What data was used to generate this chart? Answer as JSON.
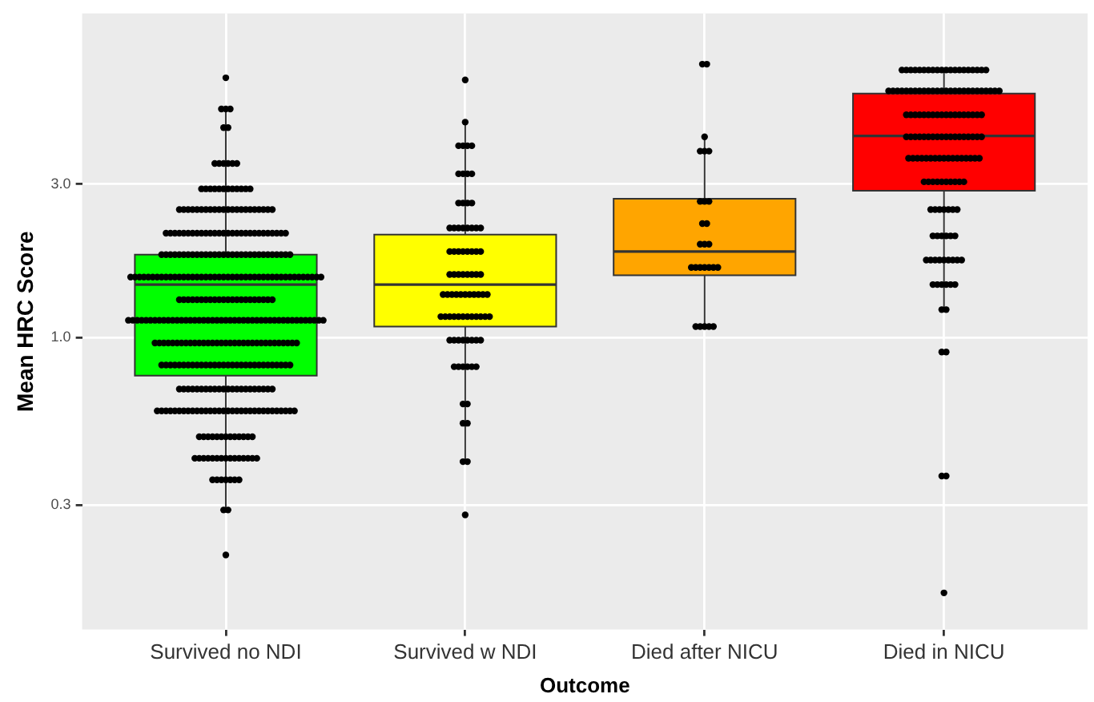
{
  "chart_data": {
    "type": "box",
    "xlabel": "Outcome",
    "ylabel": "Mean HRC Score",
    "categories": [
      "Survived no NDI",
      "Survived w NDI",
      "Died after NICU",
      "Died in NICU"
    ],
    "colors": [
      "#00ff00",
      "#ffff00",
      "#ffa500",
      "#ff0000"
    ],
    "boxes": [
      {
        "low": 0.29,
        "q1": 0.76,
        "median": 1.46,
        "q3": 1.81,
        "high": 5.14
      },
      {
        "low": 0.41,
        "q1": 1.08,
        "median": 1.46,
        "q3": 2.09,
        "high": 4.68
      },
      {
        "low": 1.08,
        "q1": 1.56,
        "median": 1.85,
        "q3": 2.7,
        "high": 4.21
      },
      {
        "low": 1.22,
        "q1": 2.86,
        "median": 4.24,
        "q3": 5.74,
        "high": 6.8
      }
    ],
    "series": [
      {
        "type": "scatter",
        "color": "#000000",
        "x": [
          "Survived no NDI",
          "Survived no NDI",
          "Survived no NDI",
          "Survived no NDI",
          "Survived no NDI",
          "Survived no NDI",
          "Survived no NDI",
          "Survived no NDI",
          "Survived no NDI",
          "Survived no NDI",
          "Survived no NDI",
          "Survived no NDI",
          "Survived no NDI",
          "Survived no NDI",
          "Survived no NDI",
          "Survived no NDI",
          "Survived no NDI",
          "Survived no NDI",
          "Survived no NDI",
          "Survived no NDI",
          "Survived no NDI",
          "Survived no NDI",
          "Survived no NDI",
          "Survived no NDI",
          "Survived no NDI",
          "Survived no NDI",
          "Survived no NDI",
          "Survived no NDI",
          "Survived no NDI",
          "Survived no NDI",
          "Survived no NDI",
          "Survived no NDI",
          "Survived no NDI",
          "Survived no NDI",
          "Survived no NDI",
          "Survived no NDI",
          "Survived no NDI",
          "Survived no NDI",
          "Survived no NDI",
          "Survived no NDI",
          "Survived no NDI",
          "Survived no NDI",
          "Survived no NDI",
          "Survived no NDI",
          "Survived no NDI",
          "Survived no NDI",
          "Survived no NDI",
          "Survived no NDI",
          "Survived no NDI",
          "Survived no NDI",
          "Survived no NDI",
          "Survived no NDI",
          "Survived no NDI",
          "Survived no NDI",
          "Survived no NDI",
          "Survived no NDI",
          "Survived no NDI",
          "Survived no NDI",
          "Survived no NDI",
          "Survived no NDI",
          "Survived no NDI",
          "Survived no NDI",
          "Survived no NDI",
          "Survived no NDI",
          "Survived no NDI",
          "Survived no NDI",
          "Survived no NDI",
          "Survived no NDI",
          "Survived no NDI",
          "Survived no NDI",
          "Survived no NDI",
          "Survived no NDI",
          "Survived no NDI",
          "Survived no NDI",
          "Survived no NDI",
          "Survived no NDI",
          "Survived no NDI",
          "Survived no NDI",
          "Survived no NDI",
          "Survived no NDI",
          "Survived no NDI",
          "Survived no NDI",
          "Survived no NDI",
          "Survived no NDI",
          "Survived no NDI",
          "Survived no NDI",
          "Survived no NDI",
          "Survived no NDI",
          "Survived no NDI",
          "Survived no NDI",
          "Survived no NDI",
          "Survived no NDI",
          "Survived no NDI",
          "Survived no NDI",
          "Survived no NDI",
          "Survived no NDI",
          "Survived no NDI",
          "Survived no NDI",
          "Survived no NDI",
          "Survived no NDI",
          "Survived no NDI",
          "Survived no NDI",
          "Survived no NDI",
          "Survived no NDI",
          "Survived no NDI",
          "Survived no NDI",
          "Survived no NDI",
          "Survived no NDI",
          "Survived no NDI",
          "Survived no NDI",
          "Survived no NDI",
          "Survived no NDI",
          "Survived no NDI",
          "Survived no NDI",
          "Survived no NDI",
          "Survived no NDI",
          "Survived no NDI",
          "Survived no NDI",
          "Survived no NDI",
          "Survived no NDI",
          "Survived no NDI",
          "Survived no NDI",
          "Survived no NDI",
          "Survived no NDI",
          "Survived no NDI",
          "Survived no NDI",
          "Survived no NDI",
          "Survived no NDI",
          "Survived no NDI",
          "Survived no NDI",
          "Survived no NDI",
          "Survived no NDI",
          "Survived no NDI",
          "Survived no NDI",
          "Survived no NDI",
          "Survived no NDI",
          "Survived no NDI",
          "Survived no NDI",
          "Survived no NDI",
          "Survived no NDI",
          "Survived no NDI",
          "Survived no NDI",
          "Survived no NDI",
          "Survived no NDI",
          "Survived no NDI",
          "Survived no NDI",
          "Survived no NDI",
          "Survived no NDI",
          "Survived no NDI",
          "Survived no NDI",
          "Survived no NDI",
          "Survived no NDI",
          "Survived no NDI",
          "Survived no NDI",
          "Survived no NDI",
          "Survived no NDI",
          "Survived no NDI",
          "Survived no NDI",
          "Survived no NDI",
          "Survived no NDI",
          "Survived no NDI",
          "Survived no NDI",
          "Survived no NDI",
          "Survived no NDI",
          "Survived no NDI",
          "Survived no NDI",
          "Survived no NDI",
          "Survived no NDI",
          "Survived no NDI",
          "Survived no NDI",
          "Survived no NDI",
          "Survived no NDI",
          "Survived no NDI",
          "Survived no NDI",
          "Survived no NDI",
          "Survived no NDI",
          "Survived no NDI",
          "Survived no NDI",
          "Survived no NDI",
          "Survived no NDI",
          "Survived no NDI",
          "Survived no NDI",
          "Survived no NDI",
          "Survived no NDI",
          "Survived no NDI",
          "Survived no NDI",
          "Survived no NDI",
          "Survived no NDI",
          "Survived no NDI",
          "Survived no NDI",
          "Survived no NDI",
          "Survived no NDI",
          "Survived no NDI",
          "Survived no NDI",
          "Survived no NDI",
          "Survived no NDI",
          "Survived no NDI",
          "Survived no NDI",
          "Survived no NDI",
          "Survived no NDI",
          "Survived no NDI",
          "Survived no NDI",
          "Survived no NDI",
          "Survived no NDI",
          "Survived no NDI",
          "Survived no NDI",
          "Survived no NDI",
          "Survived no NDI",
          "Survived no NDI",
          "Survived no NDI",
          "Survived no NDI",
          "Survived no NDI",
          "Survived no NDI",
          "Survived no NDI",
          "Survived no NDI",
          "Survived no NDI",
          "Survived no NDI",
          "Survived no NDI",
          "Survived no NDI",
          "Survived no NDI",
          "Survived no NDI",
          "Survived no NDI",
          "Survived no NDI",
          "Survived no NDI",
          "Survived no NDI",
          "Survived no NDI",
          "Survived no NDI",
          "Survived no NDI",
          "Survived no NDI",
          "Survived no NDI",
          "Survived no NDI",
          "Survived no NDI",
          "Survived no NDI",
          "Survived no NDI",
          "Survived no NDI",
          "Survived no NDI",
          "Survived no NDI",
          "Survived no NDI",
          "Survived no NDI",
          "Survived no NDI",
          "Survived no NDI",
          "Survived no NDI",
          "Survived no NDI",
          "Survived no NDI",
          "Survived no NDI",
          "Survived no NDI",
          "Survived no NDI",
          "Survived no NDI",
          "Survived no NDI",
          "Survived no NDI",
          "Survived no NDI",
          "Survived no NDI",
          "Survived no NDI",
          "Survived no NDI",
          "Survived no NDI",
          "Survived no NDI",
          "Survived no NDI",
          "Survived no NDI",
          "Survived no NDI",
          "Survived no NDI",
          "Survived no NDI",
          "Survived no NDI",
          "Survived no NDI",
          "Survived no NDI",
          "Survived no NDI",
          "Survived no NDI",
          "Survived no NDI",
          "Survived no NDI",
          "Survived no NDI",
          "Survived no NDI",
          "Survived no NDI",
          "Survived no NDI",
          "Survived no NDI",
          "Survived no NDI",
          "Survived no NDI",
          "Survived no NDI",
          "Survived no NDI",
          "Survived no NDI",
          "Survived no NDI",
          "Survived no NDI",
          "Survived no NDI",
          "Survived no NDI",
          "Survived no NDI",
          "Survived no NDI",
          "Survived no NDI",
          "Survived no NDI",
          "Survived no NDI",
          "Survived no NDI",
          "Survived no NDI",
          "Survived no NDI",
          "Survived no NDI",
          "Survived no NDI",
          "Survived no NDI",
          "Survived no NDI",
          "Survived no NDI",
          "Survived no NDI",
          "Survived no NDI",
          "Survived no NDI",
          "Survived no NDI",
          "Survived no NDI",
          "Survived no NDI",
          "Survived no NDI",
          "Survived no NDI",
          "Survived no NDI",
          "Survived no NDI",
          "Survived no NDI",
          "Survived no NDI",
          "Survived no NDI",
          "Survived no NDI",
          "Survived no NDI",
          "Survived no NDI",
          "Survived no NDI",
          "Survived no NDI",
          "Survived no NDI",
          "Survived no NDI",
          "Survived no NDI",
          "Survived no NDI",
          "Survived no NDI",
          "Survived no NDI",
          "Survived no NDI",
          "Survived no NDI",
          "Survived no NDI",
          "Survived no NDI",
          "Survived no NDI",
          "Survived no NDI",
          "Survived no NDI",
          "Survived no NDI",
          "Survived no NDI",
          "Survived no NDI",
          "Survived no NDI",
          "Survived no NDI",
          "Survived no NDI",
          "Survived no NDI",
          "Survived no NDI",
          "Survived no NDI",
          "Survived no NDI",
          "Survived no NDI",
          "Survived no NDI",
          "Survived no NDI",
          "Survived no NDI",
          "Survived no NDI",
          "Survived no NDI",
          "Survived no NDI",
          "Survived no NDI",
          "Survived no NDI",
          "Survived no NDI",
          "Survived no NDI",
          "Survived no NDI",
          "Survived no NDI",
          "Survived no NDI",
          "Survived no NDI",
          "Survived no NDI",
          "Survived no NDI",
          "Survived no NDI",
          "Survived no NDI",
          "Survived no NDI",
          "Survived no NDI",
          "Survived no NDI",
          "Survived no NDI",
          "Survived no NDI",
          "Survived no NDI",
          "Survived no NDI",
          "Survived no NDI",
          "Survived no NDI",
          "Survived no NDI",
          "Survived no NDI",
          "Survived no NDI",
          "Survived no NDI",
          "Survived no NDI",
          "Survived no NDI"
        ],
        "values": [
          6.43,
          5.14,
          5.14,
          5.14,
          4.5,
          4.5,
          3.48,
          3.48,
          3.48,
          3.48,
          3.48,
          3.48,
          2.9,
          2.9,
          2.9,
          2.9,
          2.9,
          2.9,
          2.9,
          2.9,
          2.9,
          2.9,
          2.9,
          2.9,
          2.5,
          2.5,
          2.5,
          2.5,
          2.5,
          2.5,
          2.5,
          2.5,
          2.5,
          2.5,
          2.5,
          2.5,
          2.5,
          2.5,
          2.5,
          2.5,
          2.5,
          2.5,
          2.5,
          2.5,
          2.5,
          2.5,
          2.11,
          2.11,
          2.11,
          2.11,
          2.11,
          2.11,
          2.11,
          2.11,
          2.11,
          2.11,
          2.11,
          2.11,
          2.11,
          2.11,
          2.11,
          2.11,
          2.11,
          2.11,
          2.11,
          2.11,
          2.11,
          2.11,
          2.11,
          2.11,
          2.11,
          2.11,
          2.11,
          2.11,
          1.81,
          1.81,
          1.81,
          1.81,
          1.81,
          1.81,
          1.81,
          1.81,
          1.81,
          1.81,
          1.81,
          1.81,
          1.81,
          1.81,
          1.81,
          1.81,
          1.81,
          1.81,
          1.81,
          1.81,
          1.81,
          1.81,
          1.81,
          1.81,
          1.81,
          1.81,
          1.81,
          1.81,
          1.81,
          1.81,
          1.54,
          1.54,
          1.54,
          1.54,
          1.54,
          1.54,
          1.54,
          1.54,
          1.54,
          1.54,
          1.54,
          1.54,
          1.54,
          1.54,
          1.54,
          1.54,
          1.54,
          1.54,
          1.54,
          1.54,
          1.54,
          1.54,
          1.54,
          1.54,
          1.54,
          1.54,
          1.54,
          1.54,
          1.54,
          1.54,
          1.54,
          1.54,
          1.54,
          1.54,
          1.54,
          1.54,
          1.54,
          1.54,
          1.54,
          1.54,
          1.54,
          1.54,
          1.54,
          1.54,
          1.31,
          1.31,
          1.31,
          1.31,
          1.31,
          1.31,
          1.31,
          1.31,
          1.31,
          1.31,
          1.31,
          1.31,
          1.31,
          1.31,
          1.31,
          1.31,
          1.31,
          1.31,
          1.31,
          1.31,
          1.31,
          1.31,
          1.13,
          1.13,
          1.13,
          1.13,
          1.13,
          1.13,
          1.13,
          1.13,
          1.13,
          1.13,
          1.13,
          1.13,
          1.13,
          1.13,
          1.13,
          1.13,
          1.13,
          1.13,
          1.13,
          1.13,
          1.13,
          1.13,
          1.13,
          1.13,
          1.13,
          1.13,
          1.13,
          1.13,
          1.13,
          1.13,
          1.13,
          1.13,
          1.13,
          1.13,
          1.13,
          1.13,
          1.13,
          1.13,
          1.13,
          1.13,
          1.13,
          1.13,
          1.13,
          1.13,
          1.13,
          0.96,
          0.96,
          0.96,
          0.96,
          0.96,
          0.96,
          0.96,
          0.96,
          0.96,
          0.96,
          0.96,
          0.96,
          0.96,
          0.96,
          0.96,
          0.96,
          0.96,
          0.96,
          0.96,
          0.96,
          0.96,
          0.96,
          0.96,
          0.96,
          0.96,
          0.96,
          0.96,
          0.96,
          0.96,
          0.96,
          0.96,
          0.96,
          0.96,
          0.82,
          0.82,
          0.82,
          0.82,
          0.82,
          0.82,
          0.82,
          0.82,
          0.82,
          0.82,
          0.82,
          0.82,
          0.82,
          0.82,
          0.82,
          0.82,
          0.82,
          0.82,
          0.82,
          0.82,
          0.82,
          0.82,
          0.82,
          0.82,
          0.82,
          0.82,
          0.82,
          0.82,
          0.82,
          0.82,
          0.69,
          0.69,
          0.69,
          0.69,
          0.69,
          0.69,
          0.69,
          0.69,
          0.69,
          0.69,
          0.69,
          0.69,
          0.69,
          0.69,
          0.69,
          0.69,
          0.69,
          0.69,
          0.69,
          0.69,
          0.69,
          0.69,
          0.59,
          0.59,
          0.59,
          0.59,
          0.59,
          0.59,
          0.59,
          0.59,
          0.59,
          0.59,
          0.59,
          0.59,
          0.59,
          0.59,
          0.59,
          0.59,
          0.59,
          0.59,
          0.59,
          0.59,
          0.59,
          0.59,
          0.59,
          0.59,
          0.59,
          0.59,
          0.59,
          0.59,
          0.59,
          0.59,
          0.59,
          0.59,
          0.49,
          0.49,
          0.49,
          0.49,
          0.49,
          0.49,
          0.49,
          0.49,
          0.49,
          0.49,
          0.49,
          0.49,
          0.49,
          0.42,
          0.42,
          0.42,
          0.42,
          0.42,
          0.42,
          0.42,
          0.42,
          0.42,
          0.42,
          0.42,
          0.42,
          0.42,
          0.42,
          0.42,
          0.36,
          0.36,
          0.36,
          0.36,
          0.36,
          0.36,
          0.36,
          0.29,
          0.29,
          0.21
        ]
      },
      {
        "type": "scatter",
        "color": "#000000",
        "x": [
          "Survived w NDI",
          "Survived w NDI",
          "Survived w NDI",
          "Survived w NDI",
          "Survived w NDI",
          "Survived w NDI",
          "Survived w NDI",
          "Survived w NDI",
          "Survived w NDI",
          "Survived w NDI",
          "Survived w NDI",
          "Survived w NDI",
          "Survived w NDI",
          "Survived w NDI",
          "Survived w NDI",
          "Survived w NDI",
          "Survived w NDI",
          "Survived w NDI",
          "Survived w NDI",
          "Survived w NDI",
          "Survived w NDI",
          "Survived w NDI",
          "Survived w NDI",
          "Survived w NDI",
          "Survived w NDI",
          "Survived w NDI",
          "Survived w NDI",
          "Survived w NDI",
          "Survived w NDI",
          "Survived w NDI",
          "Survived w NDI",
          "Survived w NDI",
          "Survived w NDI",
          "Survived w NDI",
          "Survived w NDI",
          "Survived w NDI",
          "Survived w NDI",
          "Survived w NDI",
          "Survived w NDI",
          "Survived w NDI",
          "Survived w NDI",
          "Survived w NDI",
          "Survived w NDI",
          "Survived w NDI",
          "Survived w NDI",
          "Survived w NDI",
          "Survived w NDI",
          "Survived w NDI",
          "Survived w NDI",
          "Survived w NDI",
          "Survived w NDI",
          "Survived w NDI",
          "Survived w NDI",
          "Survived w NDI",
          "Survived w NDI",
          "Survived w NDI",
          "Survived w NDI",
          "Survived w NDI",
          "Survived w NDI",
          "Survived w NDI",
          "Survived w NDI",
          "Survived w NDI",
          "Survived w NDI",
          "Survived w NDI",
          "Survived w NDI",
          "Survived w NDI",
          "Survived w NDI",
          "Survived w NDI",
          "Survived w NDI",
          "Survived w NDI",
          "Survived w NDI",
          "Survived w NDI",
          "Survived w NDI",
          "Survived w NDI",
          "Survived w NDI",
          "Survived w NDI",
          "Survived w NDI",
          "Survived w NDI",
          "Survived w NDI",
          "Survived w NDI",
          "Survived w NDI",
          "Survived w NDI"
        ],
        "values": [
          6.33,
          4.68,
          3.95,
          3.95,
          3.95,
          3.95,
          3.23,
          3.23,
          3.23,
          3.23,
          2.62,
          2.62,
          2.62,
          2.62,
          2.19,
          2.19,
          2.19,
          2.19,
          2.19,
          2.19,
          2.19,
          2.19,
          1.85,
          1.85,
          1.85,
          1.85,
          1.85,
          1.85,
          1.85,
          1.85,
          1.57,
          1.57,
          1.57,
          1.57,
          1.57,
          1.57,
          1.57,
          1.57,
          1.36,
          1.36,
          1.36,
          1.36,
          1.36,
          1.36,
          1.36,
          1.36,
          1.36,
          1.36,
          1.36,
          1.16,
          1.16,
          1.16,
          1.16,
          1.16,
          1.16,
          1.16,
          1.16,
          1.16,
          1.16,
          1.16,
          1.16,
          0.98,
          0.98,
          0.98,
          0.98,
          0.98,
          0.98,
          0.98,
          0.98,
          0.81,
          0.81,
          0.81,
          0.81,
          0.81,
          0.81,
          0.62,
          0.62,
          0.54,
          0.54,
          0.41,
          0.41,
          0.28
        ]
      },
      {
        "type": "scatter",
        "color": "#000000",
        "x": [
          "Died after NICU",
          "Died after NICU",
          "Died after NICU",
          "Died after NICU",
          "Died after NICU",
          "Died after NICU",
          "Died after NICU",
          "Died after NICU",
          "Died after NICU",
          "Died after NICU",
          "Died after NICU",
          "Died after NICU",
          "Died after NICU",
          "Died after NICU",
          "Died after NICU",
          "Died after NICU",
          "Died after NICU",
          "Died after NICU",
          "Died after NICU",
          "Died after NICU",
          "Died after NICU",
          "Died after NICU",
          "Died after NICU",
          "Died after NICU",
          "Died after NICU",
          "Died after NICU"
        ],
        "values": [
          7.09,
          7.09,
          4.21,
          3.8,
          3.8,
          3.8,
          2.65,
          2.65,
          2.65,
          2.26,
          2.26,
          1.95,
          1.95,
          1.95,
          1.65,
          1.65,
          1.65,
          1.65,
          1.65,
          1.65,
          1.65,
          1.08,
          1.08,
          1.08,
          1.08,
          1.08
        ]
      },
      {
        "type": "scatter",
        "color": "#000000",
        "x": [
          "Died in NICU",
          "Died in NICU",
          "Died in NICU",
          "Died in NICU",
          "Died in NICU",
          "Died in NICU",
          "Died in NICU",
          "Died in NICU",
          "Died in NICU",
          "Died in NICU",
          "Died in NICU",
          "Died in NICU",
          "Died in NICU",
          "Died in NICU",
          "Died in NICU",
          "Died in NICU",
          "Died in NICU",
          "Died in NICU",
          "Died in NICU",
          "Died in NICU",
          "Died in NICU",
          "Died in NICU",
          "Died in NICU",
          "Died in NICU",
          "Died in NICU",
          "Died in NICU",
          "Died in NICU",
          "Died in NICU",
          "Died in NICU",
          "Died in NICU",
          "Died in NICU",
          "Died in NICU",
          "Died in NICU",
          "Died in NICU",
          "Died in NICU",
          "Died in NICU",
          "Died in NICU",
          "Died in NICU",
          "Died in NICU",
          "Died in NICU",
          "Died in NICU",
          "Died in NICU",
          "Died in NICU",
          "Died in NICU",
          "Died in NICU",
          "Died in NICU",
          "Died in NICU",
          "Died in NICU",
          "Died in NICU",
          "Died in NICU",
          "Died in NICU",
          "Died in NICU",
          "Died in NICU",
          "Died in NICU",
          "Died in NICU",
          "Died in NICU",
          "Died in NICU",
          "Died in NICU",
          "Died in NICU",
          "Died in NICU",
          "Died in NICU",
          "Died in NICU",
          "Died in NICU",
          "Died in NICU",
          "Died in NICU",
          "Died in NICU",
          "Died in NICU",
          "Died in NICU",
          "Died in NICU",
          "Died in NICU",
          "Died in NICU",
          "Died in NICU",
          "Died in NICU",
          "Died in NICU",
          "Died in NICU",
          "Died in NICU",
          "Died in NICU",
          "Died in NICU",
          "Died in NICU",
          "Died in NICU",
          "Died in NICU",
          "Died in NICU",
          "Died in NICU",
          "Died in NICU",
          "Died in NICU",
          "Died in NICU",
          "Died in NICU",
          "Died in NICU",
          "Died in NICU",
          "Died in NICU",
          "Died in NICU",
          "Died in NICU",
          "Died in NICU",
          "Died in NICU",
          "Died in NICU",
          "Died in NICU",
          "Died in NICU",
          "Died in NICU",
          "Died in NICU",
          "Died in NICU",
          "Died in NICU",
          "Died in NICU",
          "Died in NICU",
          "Died in NICU",
          "Died in NICU",
          "Died in NICU",
          "Died in NICU",
          "Died in NICU",
          "Died in NICU",
          "Died in NICU",
          "Died in NICU",
          "Died in NICU",
          "Died in NICU",
          "Died in NICU",
          "Died in NICU",
          "Died in NICU",
          "Died in NICU",
          "Died in NICU",
          "Died in NICU",
          "Died in NICU",
          "Died in NICU",
          "Died in NICU",
          "Died in NICU",
          "Died in NICU",
          "Died in NICU",
          "Died in NICU",
          "Died in NICU",
          "Died in NICU",
          "Died in NICU",
          "Died in NICU",
          "Died in NICU",
          "Died in NICU",
          "Died in NICU",
          "Died in NICU",
          "Died in NICU",
          "Died in NICU",
          "Died in NICU",
          "Died in NICU",
          "Died in NICU",
          "Died in NICU",
          "Died in NICU",
          "Died in NICU",
          "Died in NICU",
          "Died in NICU"
        ],
        "values": [
          6.8,
          6.8,
          6.8,
          6.8,
          6.8,
          6.8,
          6.8,
          6.8,
          6.8,
          6.8,
          6.8,
          6.8,
          6.8,
          6.8,
          6.8,
          6.8,
          6.8,
          6.8,
          6.8,
          6.8,
          5.85,
          5.85,
          5.85,
          5.85,
          5.85,
          5.85,
          5.85,
          5.85,
          5.85,
          5.85,
          5.85,
          5.85,
          5.85,
          5.85,
          5.85,
          5.85,
          5.85,
          5.85,
          5.85,
          5.85,
          5.85,
          5.85,
          5.85,
          5.85,
          5.85,
          5.85,
          4.93,
          4.93,
          4.93,
          4.93,
          4.93,
          4.93,
          4.93,
          4.93,
          4.93,
          4.93,
          4.93,
          4.93,
          4.93,
          4.93,
          4.93,
          4.93,
          4.93,
          4.93,
          4.21,
          4.21,
          4.21,
          4.21,
          4.21,
          4.21,
          4.21,
          4.21,
          4.21,
          4.21,
          4.21,
          4.21,
          4.21,
          4.21,
          4.21,
          4.21,
          4.21,
          4.21,
          3.61,
          3.61,
          3.61,
          3.61,
          3.61,
          3.61,
          3.61,
          3.61,
          3.61,
          3.61,
          3.61,
          3.61,
          3.61,
          3.61,
          3.61,
          3.61,
          3.61,
          3.05,
          3.05,
          3.05,
          3.05,
          3.05,
          3.05,
          3.05,
          3.05,
          3.05,
          3.05,
          2.5,
          2.5,
          2.5,
          2.5,
          2.5,
          2.5,
          2.5,
          2.07,
          2.07,
          2.07,
          2.07,
          2.07,
          2.07,
          1.74,
          1.74,
          1.74,
          1.74,
          1.74,
          1.74,
          1.74,
          1.74,
          1.74,
          1.46,
          1.46,
          1.46,
          1.46,
          1.46,
          1.46,
          1.22,
          1.22,
          0.9,
          0.9,
          0.37,
          0.37,
          0.16
        ]
      }
    ],
    "log": "y",
    "ylim": [
      0.123,
      10.2
    ],
    "yticks": [
      {
        "value": 0.3,
        "label": "0.3"
      },
      {
        "value": 1,
        "label": "1.0"
      },
      {
        "value": 3,
        "label": "3.0"
      }
    ],
    "grid": true,
    "legend": false,
    "marker": "circle"
  }
}
